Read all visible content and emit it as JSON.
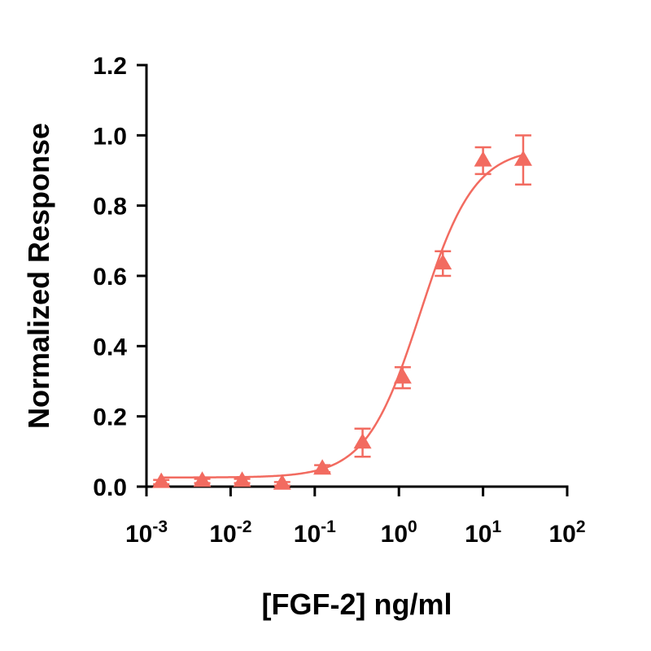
{
  "chart_data": {
    "type": "scatter",
    "title": "",
    "xlabel": "[FGF-2] ng/ml",
    "ylabel": "Normalized Response",
    "x_scale": "log10",
    "xlim": [
      0.001,
      100
    ],
    "ylim": [
      0,
      1.2
    ],
    "x_ticks": [
      {
        "base": "10",
        "exp": "-3"
      },
      {
        "base": "10",
        "exp": "-2"
      },
      {
        "base": "10",
        "exp": "-1"
      },
      {
        "base": "10",
        "exp": "0"
      },
      {
        "base": "10",
        "exp": "1"
      },
      {
        "base": "10",
        "exp": "2"
      }
    ],
    "y_ticks": [
      "0.0",
      "0.2",
      "0.4",
      "0.6",
      "0.8",
      "1.0",
      "1.2"
    ],
    "grid": false,
    "color": "#F26B60",
    "marker": "triangle",
    "series": [
      {
        "x": [
          0.0015,
          0.0046,
          0.0137,
          0.041,
          0.123,
          0.37,
          1.11,
          3.33,
          10,
          30
        ],
        "y": [
          0.013,
          0.016,
          0.016,
          0.008,
          0.051,
          0.125,
          0.31,
          0.635,
          0.928,
          0.93
        ],
        "error": [
          0.006,
          0.006,
          0.006,
          0.005,
          0.01,
          0.04,
          0.03,
          0.035,
          0.038,
          0.07
        ]
      }
    ],
    "fit": {
      "model": "4PL",
      "bottom": 0.026,
      "top": 0.965,
      "ec50": 1.8,
      "hill": 1.35
    }
  }
}
